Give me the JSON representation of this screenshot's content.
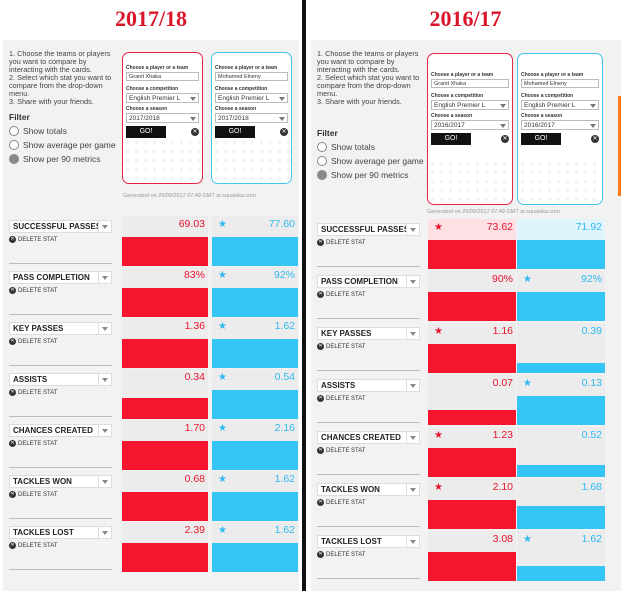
{
  "left": {
    "title": "2017/18",
    "instructions": [
      "1.  Choose the teams or players you want to compare by interacting with the cards.",
      "2.  Select which stat you want to compare from the drop-down menu.",
      "3.  Share with your friends."
    ],
    "filter": {
      "heading": "Filter",
      "options": [
        "Show totals",
        "Show average per game",
        "Show per 90 metrics"
      ],
      "selected": 2
    },
    "card_red": {
      "player_label": "Choose a player or a team",
      "player": "Granit Xhaka",
      "comp_label": "Choose a competition",
      "competition": "English Premier L",
      "season_label": "Choose a season",
      "season": "2017/2018",
      "go": "GO!"
    },
    "card_blue": {
      "player_label": "Choose a player or a team",
      "player": "Mohamed Elneny",
      "comp_label": "Choose a competition",
      "competition": "English Premier L",
      "season_label": "Choose a season",
      "season": "2017/2018",
      "go": "GO!"
    },
    "generated": "Generated on 26/09/2017 07:49 GMT at squawka.com",
    "delete_label": "DELETE STAT",
    "stats": [
      {
        "name": "SUCCESSFUL PASSES",
        "red": "69.03",
        "blue": "77.60",
        "red_fill": 0.58,
        "blue_fill": 0.58,
        "star": "blue"
      },
      {
        "name": "PASS COMPLETION",
        "red": "83%",
        "blue": "92%",
        "red_fill": 0.58,
        "blue_fill": 0.58,
        "star": "blue"
      },
      {
        "name": "KEY PASSES",
        "red": "1.36",
        "blue": "1.62",
        "red_fill": 0.58,
        "blue_fill": 0.58,
        "star": "blue"
      },
      {
        "name": "ASSISTS",
        "red": "0.34",
        "blue": "0.54",
        "red_fill": 0.42,
        "blue_fill": 0.58,
        "star": "blue"
      },
      {
        "name": "CHANCES CREATED",
        "red": "1.70",
        "blue": "2.16",
        "red_fill": 0.58,
        "blue_fill": 0.58,
        "star": "blue"
      },
      {
        "name": "TACKLES WON",
        "red": "0.68",
        "blue": "1.62",
        "red_fill": 0.58,
        "blue_fill": 0.58,
        "star": "blue"
      },
      {
        "name": "TACKLES LOST",
        "red": "2.39",
        "blue": "1.62",
        "red_fill": 0.58,
        "blue_fill": 0.58,
        "star": "blue"
      }
    ]
  },
  "right": {
    "title": "2016/17",
    "instructions": [
      "1.  Choose the teams or players you want to compare by interacting with the cards.",
      "2.  Select which stat you want to compare from the drop-down menu.",
      "3.  Share with your friends."
    ],
    "filter": {
      "heading": "Filter",
      "options": [
        "Show totals",
        "Show average per game",
        "Show per 90 metrics"
      ],
      "selected": 2
    },
    "card_red": {
      "player_label": "Choose a player or a team",
      "player": "Granit Xhaka",
      "comp_label": "Choose a competition",
      "competition": "English Premier L",
      "season_label": "Choose a season",
      "season": "2016/2017",
      "go": "GO!"
    },
    "card_blue": {
      "player_label": "Choose a player or a team",
      "player": "Mohamed Elneny",
      "comp_label": "Choose a competition",
      "competition": "English Premier L",
      "season_label": "Choose a season",
      "season": "2016/2017",
      "go": "GO!"
    },
    "generated": "Generated on 26/09/2017 07:49 GMT at squawka.com",
    "delete_label": "DELETE STAT",
    "stats": [
      {
        "name": "SUCCESSFUL PASSES",
        "red": "73.62",
        "blue": "71.92",
        "red_fill": 0.58,
        "blue_fill": 0.58,
        "star": "red"
      },
      {
        "name": "PASS COMPLETION",
        "red": "90%",
        "blue": "92%",
        "red_fill": 0.58,
        "blue_fill": 0.58,
        "star": "blue"
      },
      {
        "name": "KEY PASSES",
        "red": "1.16",
        "blue": "0.39",
        "red_fill": 0.58,
        "blue_fill": 0.2,
        "star": "red"
      },
      {
        "name": "ASSISTS",
        "red": "0.07",
        "blue": "0.13",
        "red_fill": 0.3,
        "blue_fill": 0.58,
        "star": "blue"
      },
      {
        "name": "CHANCES CREATED",
        "red": "1.23",
        "blue": "0.52",
        "red_fill": 0.58,
        "blue_fill": 0.24,
        "star": "red"
      },
      {
        "name": "TACKLES WON",
        "red": "2.10",
        "blue": "1.68",
        "red_fill": 0.58,
        "blue_fill": 0.46,
        "star": "red"
      },
      {
        "name": "TACKLES LOST",
        "red": "3.08",
        "blue": "1.62",
        "red_fill": 0.58,
        "blue_fill": 0.3,
        "star": "blue"
      }
    ]
  }
}
